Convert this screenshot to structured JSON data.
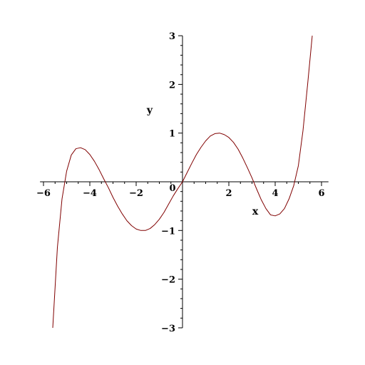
{
  "chart_data": {
    "type": "line",
    "title": "",
    "xlabel": "x",
    "ylabel": "y",
    "xlim": [
      -6.15,
      6.3
    ],
    "ylim": [
      -3,
      3
    ],
    "axes_style": "crossing-at-origin",
    "grid": false,
    "legend": "none",
    "x_ticks": [
      -6,
      -4,
      -2,
      0,
      2,
      4,
      6
    ],
    "x_tick_labels": [
      "−6",
      "−4",
      "−2",
      "0",
      "2",
      "4",
      "6"
    ],
    "y_ticks": [
      -3,
      -2,
      -1,
      1,
      2,
      3
    ],
    "y_tick_labels": [
      "−3",
      "−2",
      "−1",
      "1",
      "2",
      "3"
    ],
    "series": [
      {
        "color": "#800000",
        "x": [
          -5.6,
          -5.4,
          -5.2,
          -5.0,
          -4.8,
          -4.6,
          -4.4,
          -4.2,
          -4.0,
          -3.8,
          -3.6,
          -3.4,
          -3.2,
          -3.0,
          -2.8,
          -2.6,
          -2.4,
          -2.2,
          -2.0,
          -1.8,
          -1.6,
          -1.4,
          -1.2,
          -1.0,
          -0.8,
          -0.6,
          -0.4,
          -0.2,
          0.0,
          0.2,
          0.4,
          0.6,
          0.8,
          1.0,
          1.2,
          1.4,
          1.6,
          1.8,
          2.0,
          2.2,
          2.4,
          2.6,
          2.8,
          3.0,
          3.2,
          3.4,
          3.6,
          3.8,
          4.0,
          4.2,
          4.4,
          4.6,
          4.8,
          5.0,
          5.2,
          5.4,
          5.6
        ],
        "y": [
          -3.0,
          -1.35,
          -0.35,
          0.22,
          0.55,
          0.68,
          0.7,
          0.66,
          0.56,
          0.42,
          0.25,
          0.06,
          -0.12,
          -0.32,
          -0.5,
          -0.66,
          -0.8,
          -0.9,
          -0.97,
          -1.0,
          -1.0,
          -0.96,
          -0.88,
          -0.77,
          -0.63,
          -0.46,
          -0.29,
          -0.14,
          0.0,
          0.19,
          0.38,
          0.56,
          0.71,
          0.84,
          0.94,
          0.99,
          1.0,
          0.97,
          0.91,
          0.81,
          0.67,
          0.49,
          0.29,
          0.08,
          -0.15,
          -0.37,
          -0.55,
          -0.68,
          -0.7,
          -0.66,
          -0.55,
          -0.35,
          -0.08,
          0.33,
          1.05,
          2.0,
          3.0
        ]
      }
    ]
  }
}
